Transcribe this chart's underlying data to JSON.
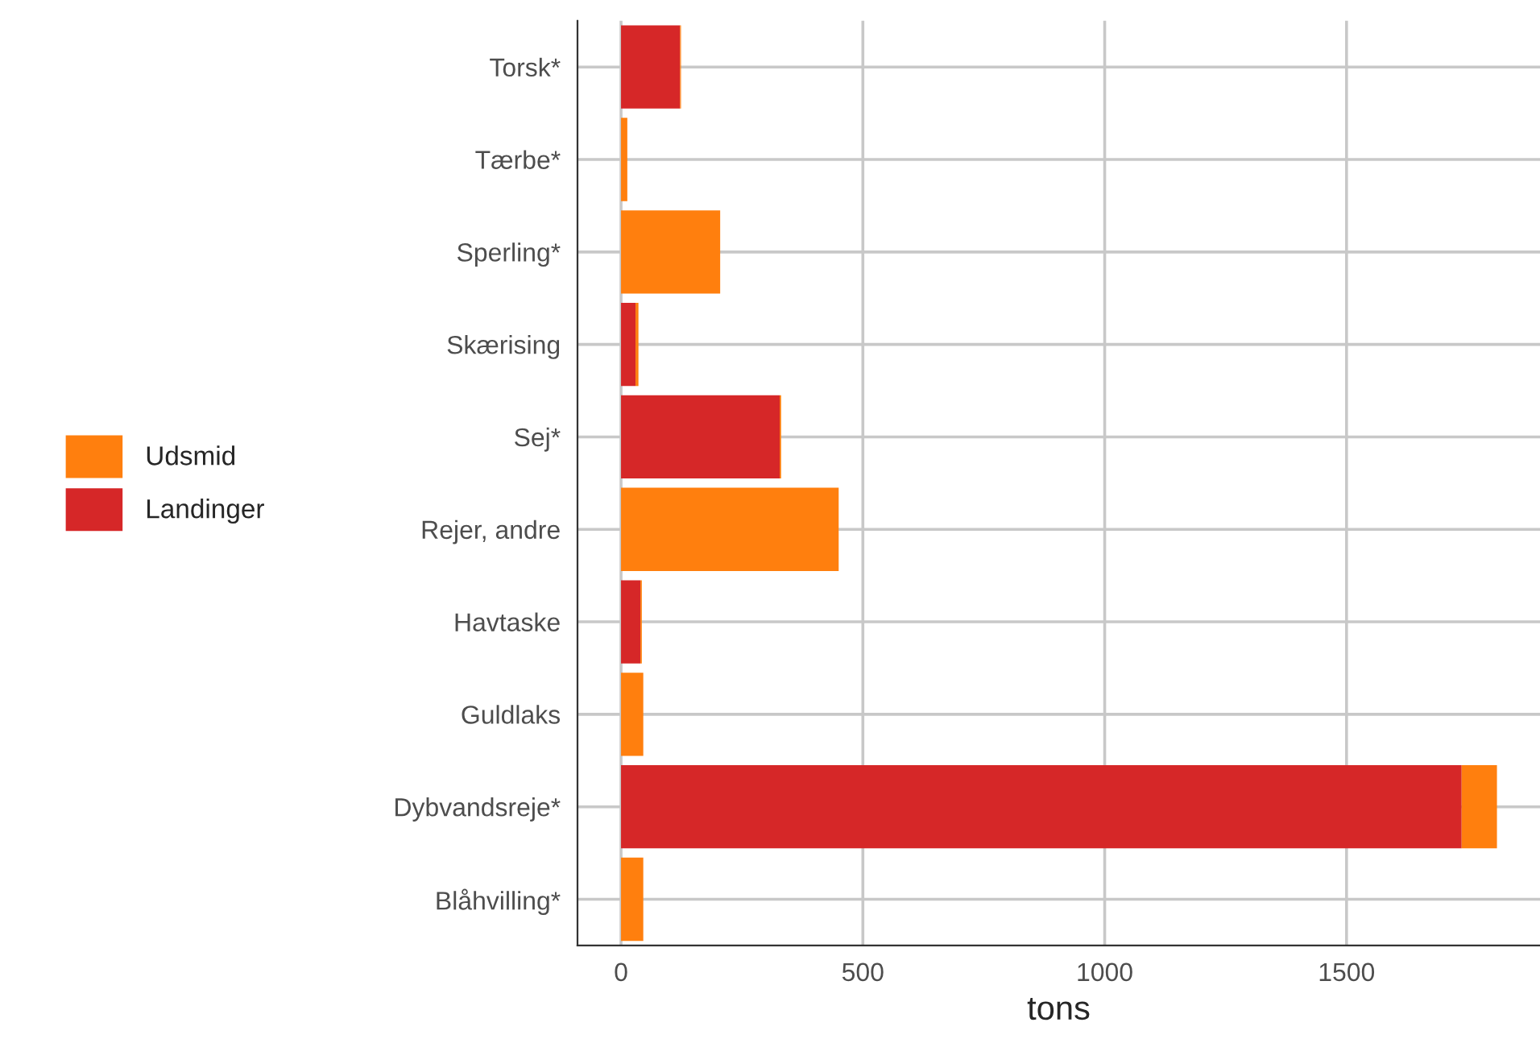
{
  "chart_data": {
    "type": "bar",
    "orientation": "horizontal",
    "stacked": true,
    "xlabel": "tons",
    "categories": [
      "Torsk*",
      "Tærbe*",
      "Sperling*",
      "Skærising",
      "Sej*",
      "Rejer, andre",
      "Havtaske",
      "Guldlaks",
      "Dybvandsreje*",
      "Blåhvilling*"
    ],
    "series": [
      {
        "name": "Landinger",
        "color": "#d62728",
        "values": [
          122,
          0,
          0,
          30,
          328,
          0,
          40,
          0,
          1738,
          0
        ]
      },
      {
        "name": "Udsmid",
        "color": "#ff7f0e",
        "values": [
          2,
          13,
          205,
          6,
          3,
          450,
          3,
          46,
          73,
          46
        ]
      }
    ],
    "xlim": [
      -90,
      1900
    ],
    "xticks": [
      0,
      500,
      1000,
      1500
    ],
    "grid": true,
    "legend": "left"
  }
}
